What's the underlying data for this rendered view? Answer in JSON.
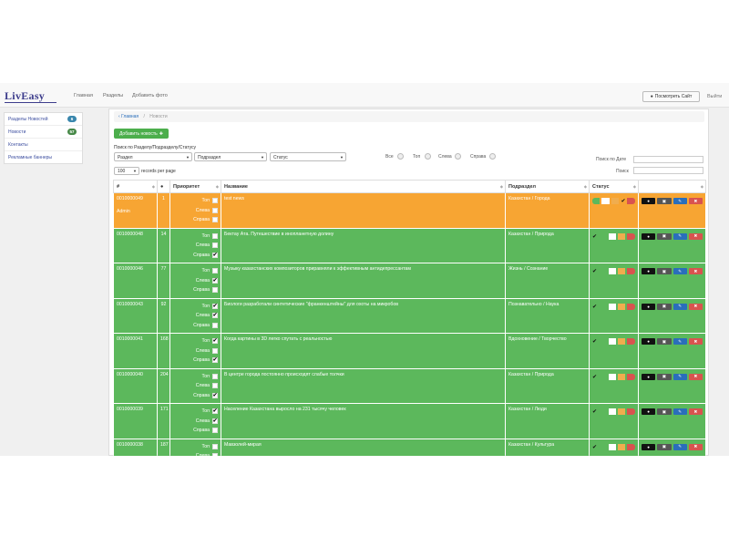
{
  "brand": "LivEasy",
  "nav": {
    "links": [
      "Главная",
      "Разделы",
      "Добавить фото"
    ],
    "view_site": "Посмотреть Сайт",
    "exit": "Выйти"
  },
  "sidebar": [
    {
      "label": "Разделы Новостей",
      "badge": "6",
      "badge_color": "#3a87ad"
    },
    {
      "label": "Новости",
      "badge": "57",
      "badge_color": "#468847"
    },
    {
      "label": "Контакты",
      "badge": ""
    },
    {
      "label": "Рекламные баннеры",
      "badge": ""
    }
  ],
  "breadcrumb": {
    "home": "Главная",
    "separator": "/",
    "current": "Новости"
  },
  "add_button": "Добавить новость",
  "filters": {
    "label": "Поиск по Разделу/Подразделу/Статусу",
    "section": "Раздел",
    "subsection": "Подраздел",
    "status": "Статус",
    "radios": [
      "Все",
      "Топ",
      "Слева",
      "Справа"
    ],
    "date_search_label": "Поиск по Дате",
    "search_label": "Поиск",
    "page_length": "100",
    "page_length_suffix": "records per page"
  },
  "table": {
    "headers": [
      "#",
      "",
      "Приоритет",
      "Название",
      "Подраздел",
      "Статус",
      ""
    ],
    "priority_labels": [
      "Топ",
      "Слева",
      "Справа"
    ],
    "rows": [
      {
        "id": "0010000049",
        "author": "Admin",
        "views": "1",
        "checks": [
          false,
          false,
          false
        ],
        "title": "test news",
        "subsection": "Казахстан / Города",
        "status": "orange",
        "status_check_pos": 3
      },
      {
        "id": "0010000048",
        "author": "",
        "views": "14",
        "checks": [
          false,
          false,
          true
        ],
        "title": "Бектау Ата. Путешествие в инопланетную долину",
        "subsection": "Казахстан / Природа",
        "status": "green",
        "status_check_pos": 0
      },
      {
        "id": "0010000046",
        "author": "",
        "views": "77",
        "checks": [
          false,
          true,
          false
        ],
        "title": "Музыку казахстанских композиторов приравняли к эффективным антидепрессантам",
        "subsection": "Жизнь / Сознание",
        "status": "green",
        "status_check_pos": 0
      },
      {
        "id": "0010000043",
        "author": "",
        "views": "92",
        "checks": [
          true,
          true,
          false
        ],
        "title": "Биологи разработали синтетические \"франкенштейны\" для охоты на микробов",
        "subsection": "Познавательно / Наука",
        "status": "green",
        "status_check_pos": 0
      },
      {
        "id": "0010000041",
        "author": "",
        "views": "168",
        "checks": [
          true,
          false,
          true
        ],
        "title": "Когда картины в 3D легко спутать с реальностью",
        "subsection": "Вдохновение / Творчество",
        "status": "green",
        "status_check_pos": 0
      },
      {
        "id": "0010000040",
        "author": "",
        "views": "204",
        "checks": [
          false,
          false,
          true
        ],
        "title": "В центре города постоянно происходят слабые толчки",
        "subsection": "Казахстан / Природа",
        "status": "green",
        "status_check_pos": 0
      },
      {
        "id": "0010000039",
        "author": "",
        "views": "171",
        "checks": [
          true,
          true,
          false
        ],
        "title": "Население Казахстана выросло на 231 тысячу человек",
        "subsection": "Казахстан / Люди",
        "status": "green",
        "status_check_pos": 0
      },
      {
        "id": "0010000038",
        "author": "",
        "views": "187",
        "checks": [
          false,
          false,
          true
        ],
        "title": "Мавзолей-мирая",
        "subsection": "Казахстан / Культура",
        "status": "green",
        "status_check_pos": 0
      }
    ]
  }
}
